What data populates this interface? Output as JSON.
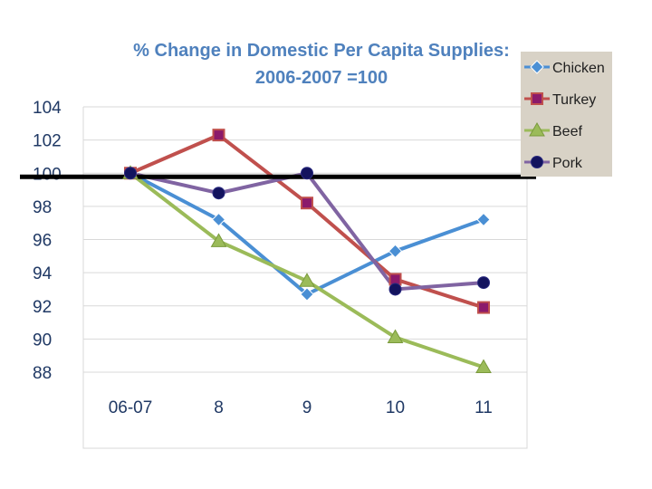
{
  "chart_data": {
    "type": "line",
    "title": [
      "% Change in Domestic Per Capita Supplies:",
      "2006-2007 =100"
    ],
    "categories": [
      "06-07",
      "8",
      "9",
      "10",
      "11"
    ],
    "ylim": [
      88,
      104
    ],
    "yticks": [
      104,
      102,
      100,
      98,
      96,
      94,
      92,
      90,
      88
    ],
    "grid": true,
    "reference_line": 100,
    "legend_position": "top-right",
    "series": [
      {
        "name": "Chicken",
        "values": [
          100,
          97.2,
          92.7,
          95.3,
          97.2
        ],
        "color": "#4a8fd4",
        "marker": "diamond"
      },
      {
        "name": "Turkey",
        "values": [
          100,
          102.3,
          98.2,
          93.6,
          91.9
        ],
        "color": "#c0504d",
        "marker": "square"
      },
      {
        "name": "Beef",
        "values": [
          100,
          95.9,
          93.5,
          90.1,
          88.3
        ],
        "color": "#9bbb59",
        "marker": "triangle"
      },
      {
        "name": "Pork",
        "values": [
          100,
          98.8,
          100.0,
          93.0,
          93.4
        ],
        "color": "#8064a2",
        "marker": "circle"
      }
    ]
  }
}
